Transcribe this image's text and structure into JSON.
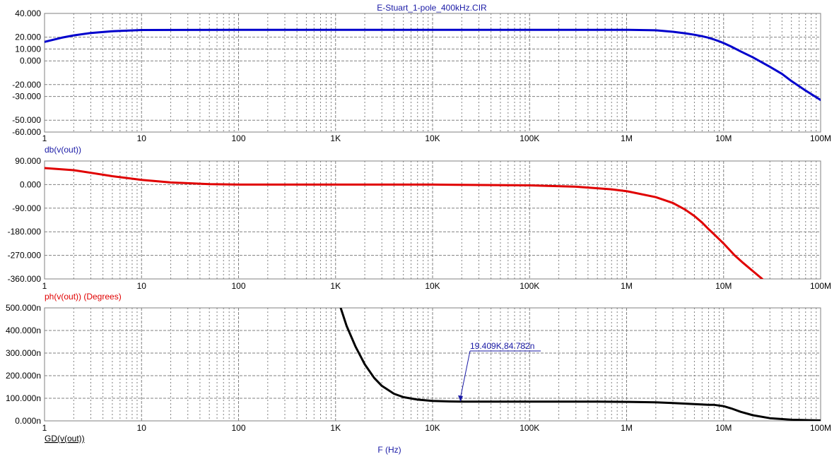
{
  "title": "E-Stuart_1-pole_400kHz.CIR",
  "colors": {
    "gain": "#0000cc",
    "phase": "#e00000",
    "groupdelay": "#000000",
    "grid": "#808080",
    "label_blue": "#1a1aa6",
    "label_red": "#e00000"
  },
  "chart_data": [
    {
      "type": "line",
      "ylabel": "db(v(out))",
      "label_color": "label_blue",
      "xscale": "log",
      "xlim": [
        1,
        100000000
      ],
      "ylim": [
        -60,
        40
      ],
      "yticks": [
        40,
        20,
        10,
        0,
        -20,
        -30,
        -50,
        -60
      ],
      "ytick_labels": [
        "40.000",
        "20.000",
        "10.000",
        "0.000",
        "-20.000",
        "-30.000",
        "-50.000",
        "-60.000"
      ],
      "xtick_labels": [
        "1",
        "10",
        "100",
        "1K",
        "10K",
        "100K",
        "1M",
        "10M",
        "100M"
      ],
      "grid": true,
      "series": [
        {
          "color": "gain",
          "x": [
            1,
            1.5,
            2,
            3,
            5,
            10,
            100,
            1000,
            10000,
            100000,
            1000000,
            2000000,
            3000000,
            4000000,
            5000000,
            6000000,
            7000000,
            8000000,
            9000000,
            10000000,
            12000000,
            15000000,
            20000000,
            30000000,
            40000000,
            50000000,
            70000000,
            100000000
          ],
          "y": [
            16,
            19.5,
            21.5,
            23.5,
            25,
            26,
            26.2,
            26.2,
            26.2,
            26.2,
            26.2,
            25.8,
            24.5,
            23.3,
            22,
            20.8,
            19.5,
            18,
            16.5,
            15,
            12,
            8,
            3,
            -5,
            -11,
            -17,
            -25,
            -33
          ]
        }
      ]
    },
    {
      "type": "line",
      "ylabel": "ph(v(out)) (Degrees)",
      "label_color": "label_red",
      "xscale": "log",
      "xlim": [
        1,
        100000000
      ],
      "ylim": [
        -360,
        90
      ],
      "yticks": [
        90,
        0,
        -90,
        -180,
        -270,
        -360
      ],
      "ytick_labels": [
        "90.000",
        "0.000",
        "-90.000",
        "-180.000",
        "-270.000",
        "-360.000"
      ],
      "xtick_labels": [
        "1",
        "10",
        "100",
        "1K",
        "10K",
        "100K",
        "1M",
        "10M",
        "100M"
      ],
      "grid": true,
      "series": [
        {
          "color": "phase",
          "x": [
            1,
            2,
            3,
            5,
            10,
            20,
            50,
            100,
            1000,
            10000,
            100000,
            300000,
            500000,
            700000,
            1000000,
            2000000,
            3000000,
            4000000,
            5000000,
            6000000,
            7000000,
            8000000,
            10000000,
            13000000,
            16000000,
            20000000,
            25000000
          ],
          "y": [
            63,
            55,
            45,
            32,
            18,
            8,
            2,
            0,
            0,
            0,
            -3,
            -8,
            -14,
            -18,
            -25,
            -48,
            -70,
            -95,
            -120,
            -145,
            -170,
            -190,
            -225,
            -270,
            -300,
            -330,
            -360
          ]
        }
      ]
    },
    {
      "type": "line",
      "ylabel": "GD(v(out))",
      "label_color": "groupdelay",
      "xscale": "log",
      "xlim": [
        1,
        100000000
      ],
      "ylim": [
        0,
        500
      ],
      "yticks": [
        500,
        400,
        300,
        200,
        100,
        0
      ],
      "ytick_labels": [
        "500.000n",
        "400.000n",
        "300.000n",
        "200.000n",
        "100.000n",
        "0.000n"
      ],
      "xtick_labels": [
        "1",
        "10",
        "100",
        "1K",
        "10K",
        "100K",
        "1M",
        "10M",
        "100M"
      ],
      "xlabel": "F (Hz)",
      "grid": true,
      "series": [
        {
          "color": "groupdelay",
          "x": [
            1130,
            1300,
            1600,
            2000,
            2500,
            3000,
            4000,
            5000,
            7000,
            10000,
            15000,
            20000,
            50000,
            100000,
            200000,
            500000,
            1000000,
            2000000,
            3000000,
            5000000,
            7000000,
            8000000,
            10000000,
            12000000,
            15000000,
            20000000,
            30000000,
            50000000,
            100000000
          ],
          "y": [
            500,
            420,
            330,
            250,
            190,
            155,
            120,
            105,
            94,
            88,
            86,
            85,
            85,
            85,
            85,
            85,
            84,
            82,
            79,
            74,
            71,
            71,
            65,
            55,
            40,
            25,
            12,
            5,
            2
          ]
        }
      ],
      "annotation": {
        "text": "19.409K,84.782n",
        "x": 19409,
        "y": 84.782
      }
    }
  ]
}
